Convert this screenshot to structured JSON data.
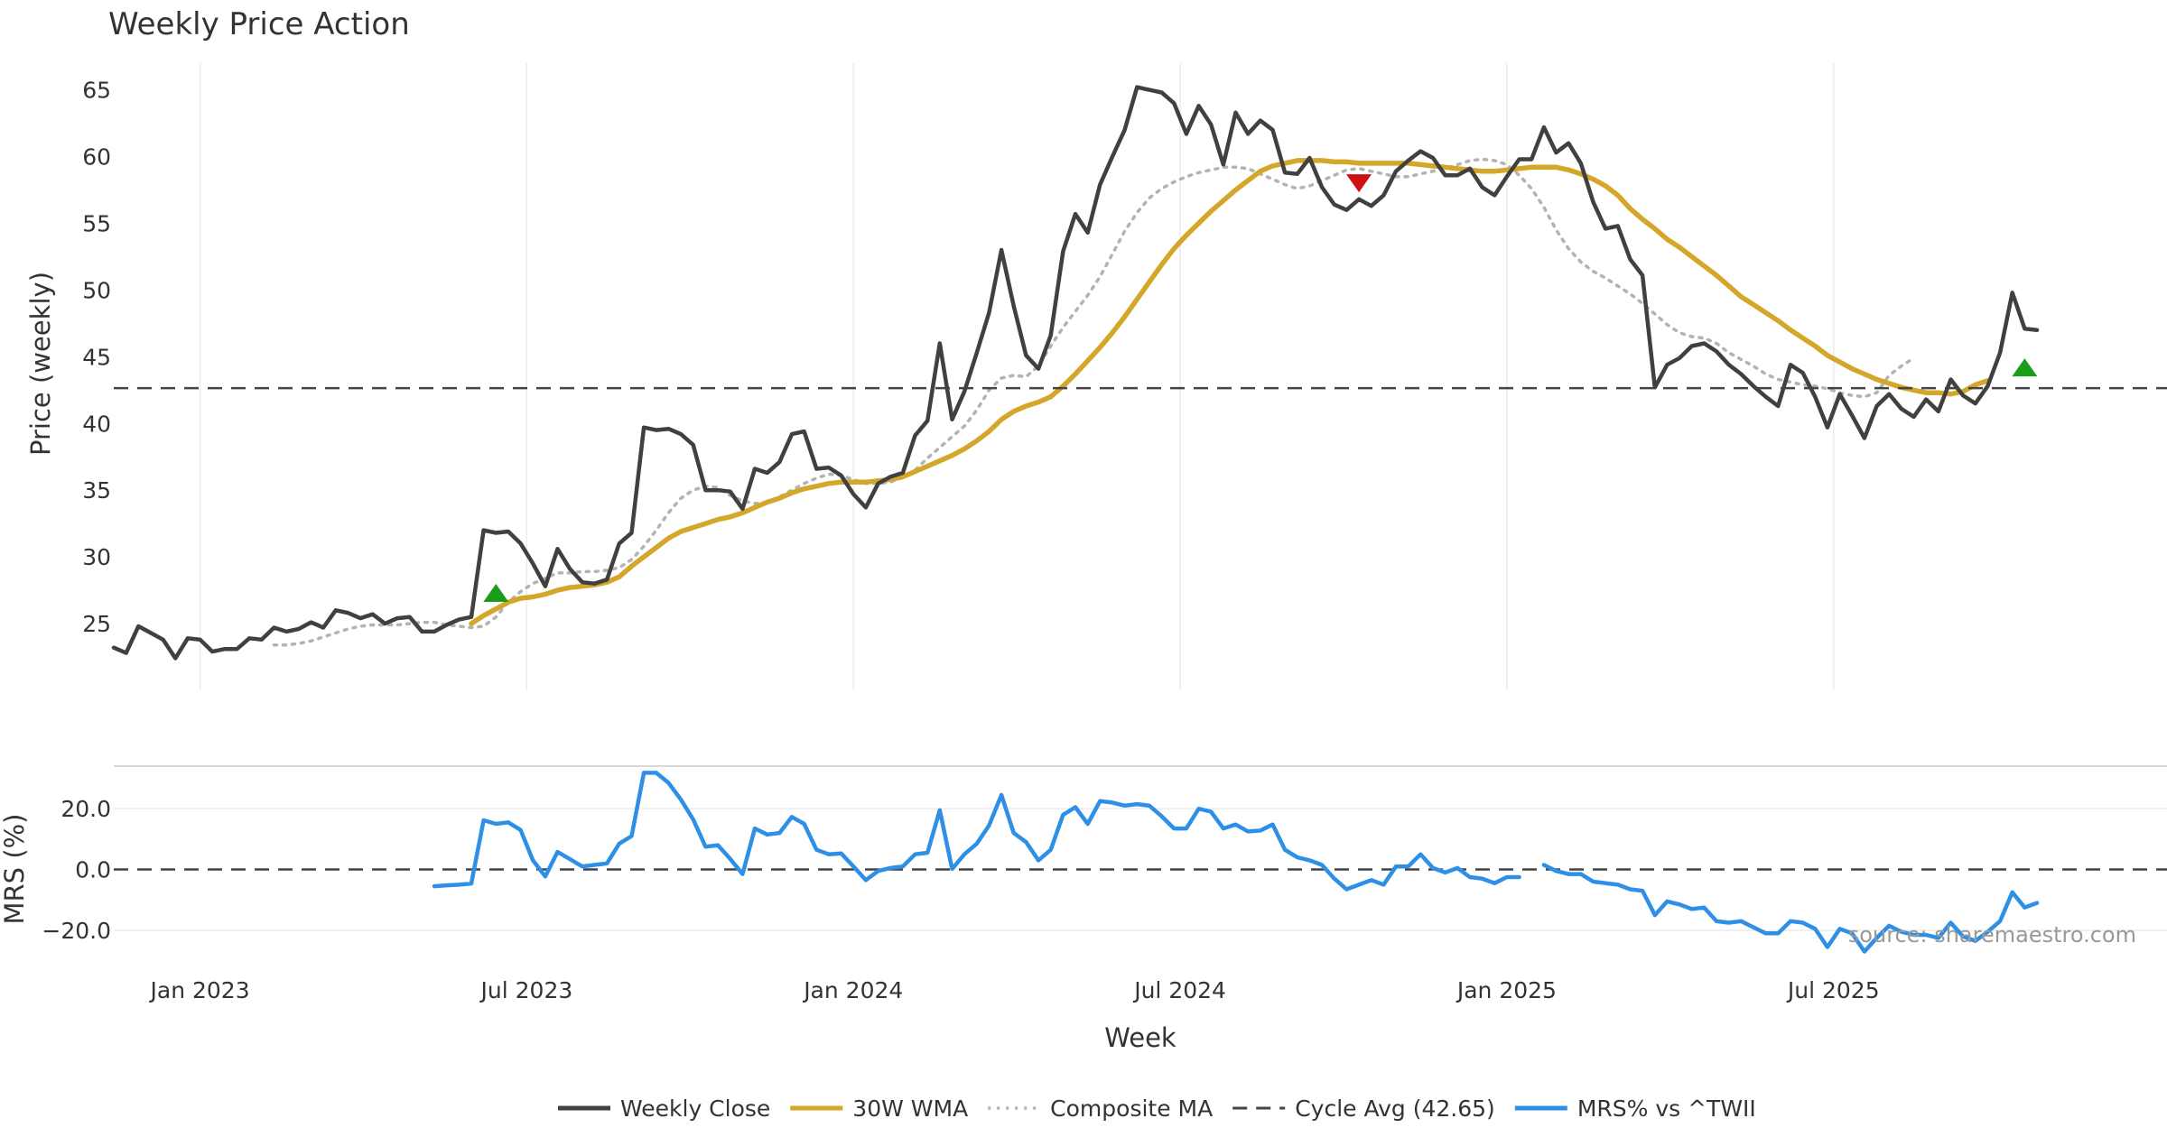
{
  "chart_data": [
    {
      "panel": "price",
      "type": "line",
      "title": "Weekly Price Action",
      "xlabel": "Week",
      "ylabel": "Price (weekly)",
      "ylim": [
        20,
        67
      ],
      "yticks": [
        "25",
        "30",
        "35",
        "40",
        "45",
        "50",
        "55",
        "60",
        "65"
      ],
      "cycle_avg": 42.65,
      "series": [
        {
          "name": "Weekly Close",
          "color": "#404040",
          "style": "solid",
          "values": [
            23.2,
            22.8,
            24.8,
            24.3,
            23.8,
            22.4,
            23.9,
            23.8,
            22.9,
            23.1,
            23.1,
            23.9,
            23.8,
            24.7,
            24.4,
            24.6,
            25.1,
            24.7,
            26.0,
            25.8,
            25.4,
            25.7,
            25.0,
            25.4,
            25.5,
            24.4,
            24.4,
            24.9,
            25.3,
            25.5,
            32.0,
            31.8,
            31.9,
            31.0,
            29.5,
            27.8,
            30.6,
            29.1,
            28.1,
            28.0,
            28.3,
            31.0,
            31.8,
            39.7,
            39.5,
            39.6,
            39.2,
            38.4,
            35.0,
            35.0,
            34.9,
            33.6,
            36.6,
            36.3,
            37.1,
            39.2,
            39.4,
            36.6,
            36.7,
            36.1,
            34.7,
            33.7,
            35.5,
            36.0,
            36.3,
            39.1,
            40.2,
            46.0,
            40.3,
            42.4,
            45.3,
            48.3,
            53.0,
            48.8,
            45.1,
            44.1,
            46.6,
            52.9,
            55.7,
            54.3,
            57.9,
            60.0,
            62.0,
            65.2,
            65.0,
            64.8,
            64.0,
            61.7,
            63.8,
            62.4,
            59.4,
            63.3,
            61.7,
            62.7,
            62.0,
            58.8,
            58.7,
            59.9,
            57.7,
            56.4,
            56.0,
            56.8,
            56.3,
            57.1,
            58.9,
            59.7,
            60.4,
            59.9,
            58.6,
            58.6,
            59.1,
            57.7,
            57.1,
            58.5,
            59.8,
            59.8,
            62.2,
            60.3,
            61.0,
            59.5,
            56.6,
            54.6,
            54.8,
            52.3,
            51.1,
            42.7,
            44.4,
            44.9,
            45.8,
            46.0,
            45.4,
            44.4,
            43.7,
            42.8,
            42.0,
            41.3,
            44.4,
            43.8,
            42.0,
            39.7,
            42.2,
            40.6,
            38.9,
            41.3,
            42.2,
            41.1,
            40.5,
            41.8,
            40.9,
            43.3,
            42.1,
            41.5,
            42.8,
            45.3,
            49.8,
            47.1,
            47.0
          ]
        },
        {
          "name": "30W WMA",
          "color": "#d4a62a",
          "style": "solid",
          "start_index": 29,
          "values": [
            25.0,
            25.6,
            26.1,
            26.6,
            26.9,
            27.0,
            27.2,
            27.5,
            27.7,
            27.8,
            27.9,
            28.1,
            28.5,
            29.3,
            30.0,
            30.7,
            31.4,
            31.9,
            32.2,
            32.5,
            32.8,
            33.0,
            33.3,
            33.7,
            34.1,
            34.4,
            34.8,
            35.1,
            35.3,
            35.5,
            35.6,
            35.6,
            35.6,
            35.7,
            35.8,
            36.0,
            36.4,
            36.8,
            37.2,
            37.6,
            38.1,
            38.7,
            39.4,
            40.3,
            40.9,
            41.3,
            41.6,
            42.0,
            42.8,
            43.7,
            44.7,
            45.7,
            46.8,
            48.0,
            49.3,
            50.6,
            51.9,
            53.1,
            54.1,
            55.0,
            55.9,
            56.7,
            57.5,
            58.2,
            58.9,
            59.3,
            59.5,
            59.7,
            59.7,
            59.7,
            59.6,
            59.6,
            59.5,
            59.5,
            59.5,
            59.5,
            59.5,
            59.4,
            59.3,
            59.2,
            59.1,
            59.0,
            58.9,
            58.9,
            59.0,
            59.1,
            59.2,
            59.2,
            59.2,
            59.0,
            58.7,
            58.3,
            57.8,
            57.1,
            56.1,
            55.3,
            54.6,
            53.8,
            53.2,
            52.5,
            51.8,
            51.1,
            50.3,
            49.5,
            48.9,
            48.3,
            47.7,
            47.0,
            46.4,
            45.8,
            45.1,
            44.6,
            44.1,
            43.7,
            43.3,
            43.0,
            42.7,
            42.5,
            42.3,
            42.3,
            42.2,
            42.4,
            42.9,
            43.2
          ]
        },
        {
          "name": "Composite MA",
          "color": "#b3b3b3",
          "style": "dotted",
          "start_index": 13,
          "values": [
            23.4,
            23.4,
            23.5,
            23.7,
            24.0,
            24.3,
            24.6,
            24.8,
            24.9,
            24.9,
            24.9,
            25.0,
            25.1,
            25.1,
            24.9,
            24.8,
            24.7,
            24.8,
            25.5,
            26.6,
            27.4,
            28.0,
            28.4,
            28.8,
            28.8,
            28.9,
            28.9,
            29.0,
            29.2,
            29.8,
            30.8,
            32.0,
            33.3,
            34.4,
            35.0,
            35.3,
            35.2,
            34.6,
            34.2,
            34.0,
            34.1,
            34.5,
            35.0,
            35.5,
            35.9,
            36.2,
            36.1,
            35.8,
            35.5,
            35.5,
            35.6,
            36.0,
            36.5,
            37.4,
            38.2,
            39.0,
            39.8,
            41.0,
            42.5,
            43.4,
            43.6,
            43.5,
            44.3,
            45.8,
            47.2,
            48.4,
            49.6,
            51.0,
            52.7,
            54.4,
            55.8,
            56.9,
            57.6,
            58.1,
            58.5,
            58.8,
            59.0,
            59.2,
            59.2,
            59.1,
            58.7,
            58.3,
            57.9,
            57.6,
            57.8,
            58.2,
            58.6,
            59.0,
            59.1,
            58.9,
            58.7,
            58.5,
            58.5,
            58.7,
            58.9,
            59.1,
            59.4,
            59.7,
            59.8,
            59.7,
            59.4,
            58.6,
            57.6,
            56.2,
            54.5,
            53.1,
            52.1,
            51.4,
            50.9,
            50.3,
            49.7,
            49.0,
            48.2,
            47.4,
            46.8,
            46.5,
            46.4,
            46.0,
            45.3,
            44.8,
            44.3,
            43.7,
            43.3,
            43.1,
            42.9,
            42.8,
            42.6,
            42.3,
            42.1,
            42.0,
            42.3,
            43.6,
            44.3,
            44.9
          ]
        }
      ],
      "signals": [
        {
          "type": "buy",
          "index": 31,
          "value": 27.3,
          "color": "#1a9e1a"
        },
        {
          "type": "sell",
          "index": 101,
          "value": 58.0,
          "color": "#cc1111"
        },
        {
          "type": "buy",
          "index": 155,
          "value": 44.2,
          "color": "#1a9e1a"
        }
      ]
    },
    {
      "panel": "mrs",
      "type": "line",
      "ylabel": "MRS (%)",
      "ylim": [
        -31,
        34
      ],
      "yticks": [
        "20.0",
        "0.0",
        "−20.0"
      ],
      "series": [
        {
          "name": "MRS% vs ^TWII",
          "color": "#2e8fe6",
          "style": "solid",
          "start_index": 26,
          "values": [
            -5.5,
            -5.2,
            -5.0,
            -4.6,
            16.2,
            15.0,
            15.5,
            13.0,
            3.0,
            -2.3,
            5.8,
            3.4,
            1.0,
            1.5,
            2.0,
            8.5,
            11.0,
            31.8,
            31.8,
            28.5,
            23.0,
            16.5,
            7.5,
            8.0,
            3.5,
            -1.5,
            13.5,
            11.5,
            12.0,
            17.3,
            15.0,
            6.5,
            5.0,
            5.3,
            1.0,
            -3.5,
            -0.5,
            0.5,
            1.0,
            5.0,
            5.5,
            19.5,
            0.2,
            5.0,
            8.5,
            14.5,
            24.5,
            12.0,
            9.0,
            3.0,
            6.5,
            18.0,
            20.5,
            15.0,
            22.5,
            22.0,
            21.0,
            21.5,
            21.0,
            17.5,
            13.5,
            13.5,
            20.0,
            19.0,
            13.5,
            14.8,
            12.5,
            12.8,
            14.8,
            6.5,
            4.0,
            3.0,
            1.5,
            -3.0,
            -6.5,
            -5.0,
            -3.5,
            -5.0,
            1.0,
            1.0,
            5.0,
            0.5,
            -1.0,
            0.5,
            -2.5,
            -3.0,
            -4.5,
            -2.5,
            -2.5,
            null,
            1.5,
            -0.5,
            -1.5,
            -1.5,
            -4.0,
            -4.5,
            -5.0,
            -6.5,
            -7.0,
            -15.0,
            -10.5,
            -11.5,
            -13.0,
            -12.5,
            -17.0,
            -17.5,
            -17.0,
            -19.0,
            -21.0,
            -21.0,
            -17.0,
            -17.5,
            -19.5,
            -25.5,
            -19.5,
            -21.0,
            -27.0,
            -22.5,
            -18.5,
            -20.5,
            -21.5,
            -21.5,
            -22.5,
            -17.5,
            -22.0,
            -23.5,
            -20.5,
            -17.0,
            -7.5,
            -12.5,
            -11.0
          ]
        }
      ]
    }
  ],
  "x_axis": {
    "n_points": 160,
    "tick_labels": [
      "Jan 2023",
      "Jul 2023",
      "Jan 2024",
      "Jul 2024",
      "Jan 2025",
      "Jul 2025"
    ],
    "tick_indices": [
      7,
      33.5,
      60,
      86.5,
      113,
      139.5
    ]
  },
  "source": "source: sharemaestro.com",
  "legend": [
    {
      "label": "Weekly Close",
      "color": "#404040",
      "style": "solid"
    },
    {
      "label": "30W WMA",
      "color": "#d4a62a",
      "style": "solid"
    },
    {
      "label": "Composite MA",
      "color": "#b3b3b3",
      "style": "dotted"
    },
    {
      "label": "Cycle Avg (42.65)",
      "color": "#444444",
      "style": "dashed"
    },
    {
      "label": "MRS% vs ^TWII",
      "color": "#2e8fe6",
      "style": "solid"
    }
  ]
}
